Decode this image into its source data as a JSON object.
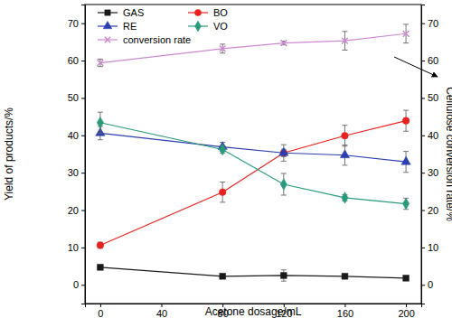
{
  "chart_data": {
    "type": "line",
    "x_label": "Acetone dosage/mL",
    "y_label": "Yield of products/%",
    "y2_label": "Cellulose conversion rate/%",
    "x": [
      0,
      80,
      120,
      160,
      200
    ],
    "xlim": [
      -10,
      210
    ],
    "xticks": [
      0,
      40,
      80,
      120,
      160,
      200
    ],
    "ylim": [
      -5,
      75
    ],
    "yticks": [
      0,
      10,
      20,
      30,
      40,
      50,
      60,
      70
    ],
    "y2lim": [
      -5,
      75
    ],
    "y2ticks": [
      0,
      10,
      20,
      30,
      40,
      50,
      60,
      70
    ],
    "legend": "top",
    "grid": false,
    "series": [
      {
        "name": "GAS",
        "color": "#1a1a1a",
        "marker": "square",
        "line_style": "solid",
        "values": [
          4.7,
          2.3,
          2.5,
          2.3,
          1.8
        ],
        "errors": [
          0.3,
          0.5,
          1.5,
          0.5,
          0.3
        ]
      },
      {
        "name": "BO",
        "color": "#e8221f",
        "marker": "circle",
        "line_style": "solid",
        "values": [
          10.6,
          24.8,
          35.3,
          39.9,
          43.9
        ],
        "errors": [
          0.8,
          2.7,
          2.2,
          2.8,
          2.8
        ]
      },
      {
        "name": "RE",
        "color": "#2b3fae",
        "marker": "triangle",
        "line_style": "solid",
        "values": [
          40.6,
          36.9,
          35.3,
          34.7,
          32.9
        ],
        "errors": [
          1.8,
          1.2,
          1.0,
          2.7,
          2.8
        ]
      },
      {
        "name": "VO",
        "color": "#2a9a7c",
        "marker": "diamond",
        "line_style": "solid",
        "values": [
          43.4,
          36.2,
          26.9,
          23.3,
          21.7
        ],
        "errors": [
          2.8,
          1.0,
          2.9,
          0.8,
          1.5
        ]
      },
      {
        "name": "conversion rate",
        "color": "#cc88d0",
        "marker": "x",
        "line_style": "solid",
        "axis": "y2",
        "values": [
          59.4,
          63.2,
          64.7,
          65.3,
          67.2
        ],
        "errors": [
          1.0,
          1.2,
          0.5,
          2.5,
          2.5
        ]
      }
    ]
  }
}
